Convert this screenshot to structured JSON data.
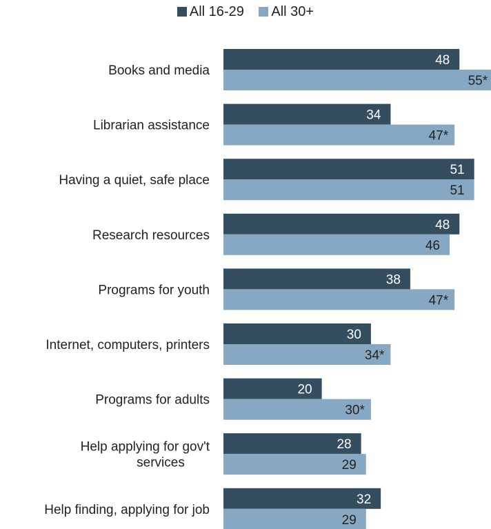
{
  "colors": {
    "series_16_29": "#344d5f",
    "series_30_plus": "#86a8c2"
  },
  "chart_data": {
    "type": "bar",
    "orientation": "horizontal",
    "legend_position": "top",
    "categories": [
      [
        "Books and media"
      ],
      [
        "Librarian assistance"
      ],
      [
        "Having a quiet, safe place"
      ],
      [
        "Research resources"
      ],
      [
        "Programs for youth"
      ],
      [
        "Internet, computers, printers"
      ],
      [
        "Programs for adults"
      ],
      [
        "Help applying for gov't",
        "services"
      ],
      [
        "Help finding, applying for job"
      ]
    ],
    "series": [
      {
        "name": "All 16-29",
        "values": [
          48,
          34,
          51,
          48,
          38,
          30,
          20,
          28,
          32
        ],
        "labels": [
          "48",
          "34",
          "51",
          "48",
          "38",
          "30",
          "20",
          "28",
          "32"
        ]
      },
      {
        "name": "All 30+",
        "values": [
          55,
          47,
          51,
          46,
          47,
          34,
          30,
          29,
          29
        ],
        "labels": [
          "55*",
          "47*",
          "51",
          "46",
          "47*",
          "34*",
          "30*",
          "29",
          "29"
        ]
      }
    ],
    "xlim": [
      0,
      55
    ]
  }
}
